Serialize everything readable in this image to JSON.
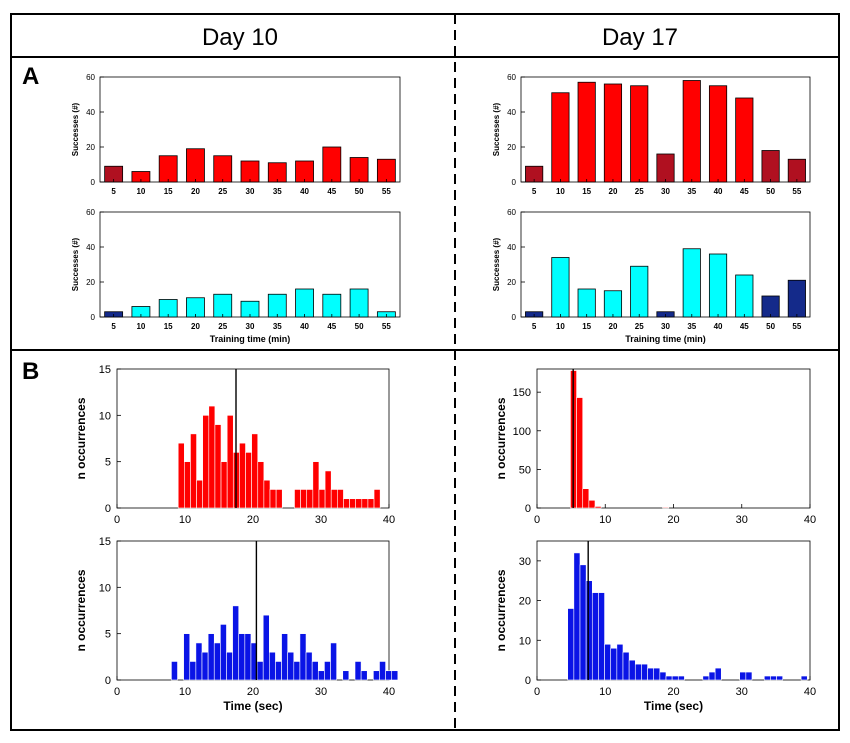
{
  "header": {
    "left_title": "Day 10",
    "right_title": "Day 17"
  },
  "panel_labels": {
    "a": "A",
    "b": "B"
  },
  "colors": {
    "red": "#ff0000",
    "dark_red": "#b01020",
    "cyan": "#00ffff",
    "navy": "#142a8a",
    "blue": "#0a14e6"
  },
  "chart_data": [
    {
      "id": "a1",
      "type": "bar",
      "ylabel": "Successes (#)",
      "xlabel": "",
      "ylim": [
        0,
        60
      ],
      "yticks": [
        0,
        20,
        40,
        60
      ],
      "categories": [
        "5",
        "10",
        "15",
        "20",
        "25",
        "30",
        "35",
        "40",
        "45",
        "50",
        "55"
      ],
      "values": [
        9,
        6,
        15,
        19,
        15,
        12,
        11,
        12,
        20,
        14,
        13
      ],
      "colors": [
        "dark_red",
        "red",
        "red",
        "red",
        "red",
        "red",
        "red",
        "red",
        "red",
        "red",
        "red"
      ]
    },
    {
      "id": "a2",
      "type": "bar",
      "ylabel": "Successes (#)",
      "xlabel": "",
      "ylim": [
        0,
        60
      ],
      "yticks": [
        0,
        20,
        40,
        60
      ],
      "categories": [
        "5",
        "10",
        "15",
        "20",
        "25",
        "30",
        "35",
        "40",
        "45",
        "50",
        "55"
      ],
      "values": [
        9,
        51,
        57,
        56,
        55,
        16,
        58,
        55,
        48,
        18,
        13
      ],
      "colors": [
        "dark_red",
        "red",
        "red",
        "red",
        "red",
        "dark_red",
        "red",
        "red",
        "red",
        "dark_red",
        "dark_red"
      ]
    },
    {
      "id": "a3",
      "type": "bar",
      "ylabel": "Successes (#)",
      "xlabel": "Training time (min)",
      "ylim": [
        0,
        60
      ],
      "yticks": [
        0,
        20,
        40,
        60
      ],
      "categories": [
        "5",
        "10",
        "15",
        "20",
        "25",
        "30",
        "35",
        "40",
        "45",
        "50",
        "55"
      ],
      "values": [
        3,
        6,
        10,
        11,
        13,
        9,
        13,
        16,
        13,
        16,
        3
      ],
      "colors": [
        "navy",
        "cyan",
        "cyan",
        "cyan",
        "cyan",
        "cyan",
        "cyan",
        "cyan",
        "cyan",
        "cyan",
        "cyan"
      ]
    },
    {
      "id": "a4",
      "type": "bar",
      "ylabel": "Successes (#)",
      "xlabel": "Training time (min)",
      "ylim": [
        0,
        60
      ],
      "yticks": [
        0,
        20,
        40,
        60
      ],
      "categories": [
        "5",
        "10",
        "15",
        "20",
        "25",
        "30",
        "35",
        "40",
        "45",
        "50",
        "55"
      ],
      "values": [
        3,
        34,
        16,
        15,
        29,
        3,
        39,
        36,
        24,
        12,
        21
      ],
      "colors": [
        "navy",
        "cyan",
        "cyan",
        "cyan",
        "cyan",
        "navy",
        "cyan",
        "cyan",
        "cyan",
        "navy",
        "navy"
      ]
    },
    {
      "id": "b1",
      "type": "histogram",
      "ylabel": "n occurrences",
      "xlabel": "",
      "xlim": [
        0,
        40
      ],
      "xticks": [
        0,
        10,
        20,
        30,
        40
      ],
      "ylim": [
        0,
        15
      ],
      "yticks": [
        0,
        5,
        10,
        15
      ],
      "bin_start": 9,
      "bin_width": 0.9,
      "color": "red",
      "marker": 17.5,
      "counts": [
        7,
        5,
        8,
        3,
        10,
        11,
        9,
        5,
        10,
        6,
        7,
        6,
        8,
        5,
        3,
        2,
        2,
        0,
        0,
        2,
        2,
        2,
        5,
        2,
        4,
        2,
        2,
        1,
        1,
        1,
        1,
        1,
        2
      ]
    },
    {
      "id": "b2",
      "type": "histogram",
      "ylabel": "n occurrences",
      "xlabel": "",
      "xlim": [
        0,
        40
      ],
      "xticks": [
        0,
        10,
        20,
        30,
        40
      ],
      "ylim": [
        0,
        180
      ],
      "yticks": [
        0,
        50,
        100,
        150
      ],
      "bin_start": 4,
      "bin_width": 0.9,
      "color": "red",
      "marker": 5.3,
      "counts": [
        0,
        178,
        143,
        25,
        10,
        2,
        0,
        0,
        0,
        0,
        0,
        0,
        0,
        0,
        0,
        0,
        1,
        0,
        0,
        0,
        0,
        0,
        0,
        0,
        0,
        0,
        0,
        0,
        0,
        0,
        0,
        0,
        0,
        0,
        0,
        0,
        0,
        0,
        0
      ]
    },
    {
      "id": "b3",
      "type": "histogram",
      "ylabel": "n occurrences",
      "xlabel": "Time (sec)",
      "xlim": [
        0,
        40
      ],
      "xticks": [
        0,
        10,
        20,
        30,
        40
      ],
      "ylim": [
        0,
        15
      ],
      "yticks": [
        0,
        5,
        10,
        15
      ],
      "bin_start": 8,
      "bin_width": 0.9,
      "color": "blue",
      "marker": 20.5,
      "counts": [
        2,
        0,
        5,
        2,
        4,
        3,
        5,
        4,
        6,
        3,
        8,
        5,
        5,
        4,
        2,
        7,
        3,
        2,
        5,
        3,
        2,
        5,
        3,
        2,
        1,
        2,
        4,
        0,
        1,
        0,
        2,
        1,
        0,
        1,
        2,
        1,
        1
      ]
    },
    {
      "id": "b4",
      "type": "histogram",
      "ylabel": "n occurrences",
      "xlabel": "Time (sec)",
      "xlim": [
        0,
        40
      ],
      "xticks": [
        0,
        10,
        20,
        30,
        40
      ],
      "ylim": [
        0,
        35
      ],
      "yticks": [
        0,
        10,
        20,
        30
      ],
      "bin_start": 4.5,
      "bin_width": 0.9,
      "color": "blue",
      "marker": 7.5,
      "counts": [
        18,
        32,
        29,
        25,
        22,
        22,
        9,
        8,
        9,
        7,
        5,
        4,
        4,
        3,
        3,
        2,
        1,
        1,
        1,
        0,
        0,
        0,
        1,
        2,
        3,
        0,
        0,
        0,
        2,
        2,
        0,
        0,
        1,
        1,
        1,
        0,
        0,
        0,
        1
      ]
    }
  ]
}
